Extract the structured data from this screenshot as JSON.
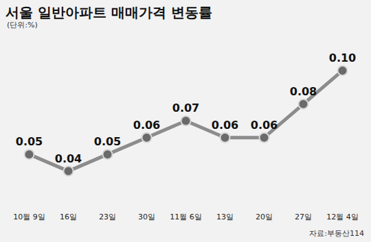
{
  "chart_data": {
    "type": "line",
    "title": "서울 일반아파트 매매가격 변동률",
    "subtitle": "(단위:%)",
    "source": "자료:부동산114",
    "categories": [
      "10월 9일",
      "16일",
      "23일",
      "30일",
      "11월 6일",
      "13일",
      "20일",
      "27일",
      "12월 4일"
    ],
    "values": [
      0.05,
      0.04,
      0.05,
      0.06,
      0.07,
      0.06,
      0.06,
      0.08,
      0.1
    ],
    "value_labels": [
      "0.05",
      "0.04",
      "0.05",
      "0.06",
      "0.07",
      "0.06",
      "0.06",
      "0.08",
      "0.10"
    ],
    "color": "#8c8c8c",
    "marker": "circle",
    "ylim": [
      0.02,
      0.11
    ],
    "data_labels": true,
    "tick_labels": "x",
    "grid": false
  }
}
